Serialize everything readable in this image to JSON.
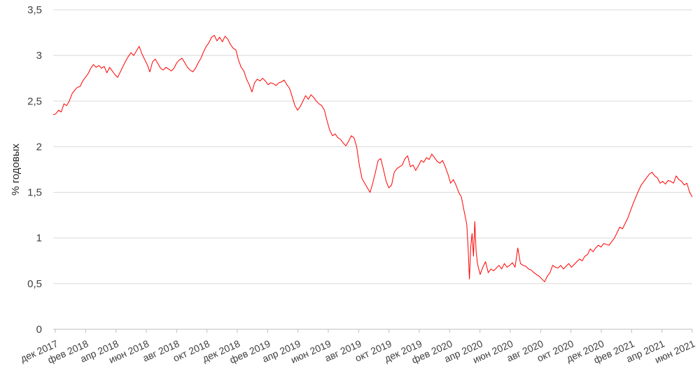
{
  "chart_data": {
    "type": "line",
    "title": "",
    "xlabel": "",
    "ylabel": "% годовых",
    "ylim": [
      0,
      3.5
    ],
    "grid": true,
    "legend": "none",
    "y_ticks": [
      "0",
      "0,5",
      "1",
      "1,5",
      "2",
      "2,5",
      "3",
      "3,5"
    ],
    "y_tick_values": [
      0,
      0.5,
      1,
      1.5,
      2,
      2.5,
      3,
      3.5
    ],
    "x_ticks": [
      "дек 2017",
      "фев 2018",
      "апр 2018",
      "июн 2018",
      "авг 2018",
      "окт 2018",
      "дек 2018",
      "фев 2019",
      "апр 2019",
      "июн 2019",
      "авг 2019",
      "окт 2019",
      "дек 2019",
      "фев 2020",
      "апр 2020",
      "июн 2020",
      "авг 2020",
      "окт 2020",
      "дек 2020",
      "фев 2021",
      "апр 2021",
      "июн 2021"
    ],
    "colors": {
      "line": "#ff0000"
    },
    "series": [
      {
        "values": [
          [
            0.0,
            2.35
          ],
          [
            0.1,
            2.36
          ],
          [
            0.2,
            2.4
          ],
          [
            0.3,
            2.38
          ],
          [
            0.4,
            2.47
          ],
          [
            0.5,
            2.45
          ],
          [
            0.6,
            2.5
          ],
          [
            0.7,
            2.58
          ],
          [
            0.8,
            2.62
          ],
          [
            0.9,
            2.65
          ],
          [
            1.0,
            2.66
          ],
          [
            1.1,
            2.72
          ],
          [
            1.2,
            2.76
          ],
          [
            1.3,
            2.8
          ],
          [
            1.4,
            2.86
          ],
          [
            1.5,
            2.9
          ],
          [
            1.6,
            2.87
          ],
          [
            1.7,
            2.89
          ],
          [
            1.8,
            2.86
          ],
          [
            1.9,
            2.88
          ],
          [
            2.0,
            2.81
          ],
          [
            2.1,
            2.87
          ],
          [
            2.2,
            2.83
          ],
          [
            2.3,
            2.79
          ],
          [
            2.4,
            2.76
          ],
          [
            2.5,
            2.82
          ],
          [
            2.6,
            2.88
          ],
          [
            2.7,
            2.94
          ],
          [
            2.8,
            2.99
          ],
          [
            2.9,
            3.03
          ],
          [
            3.0,
            3.0
          ],
          [
            3.1,
            3.05
          ],
          [
            3.2,
            3.1
          ],
          [
            3.3,
            3.02
          ],
          [
            3.4,
            2.96
          ],
          [
            3.5,
            2.9
          ],
          [
            3.6,
            2.82
          ],
          [
            3.7,
            2.93
          ],
          [
            3.8,
            2.96
          ],
          [
            3.9,
            2.91
          ],
          [
            4.0,
            2.86
          ],
          [
            4.1,
            2.84
          ],
          [
            4.2,
            2.87
          ],
          [
            4.3,
            2.85
          ],
          [
            4.4,
            2.83
          ],
          [
            4.5,
            2.86
          ],
          [
            4.6,
            2.92
          ],
          [
            4.7,
            2.95
          ],
          [
            4.8,
            2.97
          ],
          [
            4.9,
            2.92
          ],
          [
            5.0,
            2.87
          ],
          [
            5.1,
            2.84
          ],
          [
            5.2,
            2.82
          ],
          [
            5.3,
            2.86
          ],
          [
            5.4,
            2.92
          ],
          [
            5.5,
            2.97
          ],
          [
            5.6,
            3.04
          ],
          [
            5.7,
            3.1
          ],
          [
            5.8,
            3.14
          ],
          [
            5.9,
            3.2
          ],
          [
            6.0,
            3.22
          ],
          [
            6.1,
            3.16
          ],
          [
            6.2,
            3.2
          ],
          [
            6.3,
            3.15
          ],
          [
            6.4,
            3.21
          ],
          [
            6.5,
            3.18
          ],
          [
            6.6,
            3.12
          ],
          [
            6.7,
            3.08
          ],
          [
            6.8,
            3.06
          ],
          [
            6.9,
            2.95
          ],
          [
            7.0,
            2.87
          ],
          [
            7.1,
            2.83
          ],
          [
            7.2,
            2.74
          ],
          [
            7.3,
            2.68
          ],
          [
            7.4,
            2.6
          ],
          [
            7.5,
            2.7
          ],
          [
            7.6,
            2.74
          ],
          [
            7.7,
            2.72
          ],
          [
            7.8,
            2.75
          ],
          [
            7.9,
            2.72
          ],
          [
            8.0,
            2.68
          ],
          [
            8.1,
            2.7
          ],
          [
            8.2,
            2.69
          ],
          [
            8.3,
            2.67
          ],
          [
            8.4,
            2.7
          ],
          [
            8.5,
            2.71
          ],
          [
            8.6,
            2.73
          ],
          [
            8.7,
            2.68
          ],
          [
            8.8,
            2.64
          ],
          [
            8.9,
            2.55
          ],
          [
            9.0,
            2.45
          ],
          [
            9.1,
            2.4
          ],
          [
            9.2,
            2.44
          ],
          [
            9.3,
            2.5
          ],
          [
            9.4,
            2.56
          ],
          [
            9.5,
            2.52
          ],
          [
            9.6,
            2.57
          ],
          [
            9.7,
            2.54
          ],
          [
            9.8,
            2.5
          ],
          [
            9.9,
            2.47
          ],
          [
            10.0,
            2.45
          ],
          [
            10.1,
            2.4
          ],
          [
            10.2,
            2.28
          ],
          [
            10.3,
            2.18
          ],
          [
            10.4,
            2.12
          ],
          [
            10.5,
            2.14
          ],
          [
            10.6,
            2.1
          ],
          [
            10.7,
            2.08
          ],
          [
            10.8,
            2.04
          ],
          [
            10.9,
            2.01
          ],
          [
            11.0,
            2.06
          ],
          [
            11.1,
            2.12
          ],
          [
            11.2,
            2.1
          ],
          [
            11.3,
            2.0
          ],
          [
            11.4,
            1.8
          ],
          [
            11.5,
            1.65
          ],
          [
            11.6,
            1.6
          ],
          [
            11.7,
            1.55
          ],
          [
            11.8,
            1.5
          ],
          [
            11.9,
            1.6
          ],
          [
            12.0,
            1.72
          ],
          [
            12.1,
            1.85
          ],
          [
            12.2,
            1.87
          ],
          [
            12.3,
            1.75
          ],
          [
            12.4,
            1.62
          ],
          [
            12.5,
            1.55
          ],
          [
            12.6,
            1.58
          ],
          [
            12.7,
            1.72
          ],
          [
            12.8,
            1.76
          ],
          [
            12.9,
            1.78
          ],
          [
            13.0,
            1.8
          ],
          [
            13.1,
            1.87
          ],
          [
            13.2,
            1.9
          ],
          [
            13.3,
            1.78
          ],
          [
            13.4,
            1.8
          ],
          [
            13.5,
            1.74
          ],
          [
            13.6,
            1.79
          ],
          [
            13.7,
            1.85
          ],
          [
            13.8,
            1.83
          ],
          [
            13.9,
            1.88
          ],
          [
            14.0,
            1.86
          ],
          [
            14.1,
            1.92
          ],
          [
            14.2,
            1.88
          ],
          [
            14.3,
            1.84
          ],
          [
            14.4,
            1.82
          ],
          [
            14.5,
            1.85
          ],
          [
            14.6,
            1.78
          ],
          [
            14.7,
            1.7
          ],
          [
            14.8,
            1.6
          ],
          [
            14.9,
            1.64
          ],
          [
            15.0,
            1.58
          ],
          [
            15.1,
            1.5
          ],
          [
            15.2,
            1.45
          ],
          [
            15.3,
            1.3
          ],
          [
            15.4,
            1.15
          ],
          [
            15.45,
            0.9
          ],
          [
            15.5,
            0.55
          ],
          [
            15.55,
            0.9
          ],
          [
            15.6,
            1.05
          ],
          [
            15.65,
            0.8
          ],
          [
            15.7,
            1.18
          ],
          [
            15.75,
            0.85
          ],
          [
            15.8,
            0.72
          ],
          [
            15.9,
            0.6
          ],
          [
            16.0,
            0.68
          ],
          [
            16.1,
            0.74
          ],
          [
            16.2,
            0.62
          ],
          [
            16.3,
            0.66
          ],
          [
            16.4,
            0.64
          ],
          [
            16.5,
            0.67
          ],
          [
            16.6,
            0.7
          ],
          [
            16.7,
            0.66
          ],
          [
            16.8,
            0.72
          ],
          [
            16.9,
            0.68
          ],
          [
            17.0,
            0.7
          ],
          [
            17.1,
            0.73
          ],
          [
            17.2,
            0.68
          ],
          [
            17.3,
            0.89
          ],
          [
            17.4,
            0.72
          ],
          [
            17.5,
            0.7
          ],
          [
            17.6,
            0.69
          ],
          [
            17.7,
            0.66
          ],
          [
            17.8,
            0.65
          ],
          [
            17.9,
            0.62
          ],
          [
            18.0,
            0.6
          ],
          [
            18.1,
            0.58
          ],
          [
            18.2,
            0.55
          ],
          [
            18.3,
            0.52
          ],
          [
            18.4,
            0.58
          ],
          [
            18.5,
            0.62
          ],
          [
            18.6,
            0.7
          ],
          [
            18.7,
            0.68
          ],
          [
            18.8,
            0.67
          ],
          [
            18.9,
            0.7
          ],
          [
            19.0,
            0.66
          ],
          [
            19.1,
            0.69
          ],
          [
            19.2,
            0.72
          ],
          [
            19.3,
            0.68
          ],
          [
            19.4,
            0.71
          ],
          [
            19.5,
            0.74
          ],
          [
            19.6,
            0.77
          ],
          [
            19.7,
            0.75
          ],
          [
            19.8,
            0.8
          ],
          [
            19.9,
            0.82
          ],
          [
            20.0,
            0.88
          ],
          [
            20.1,
            0.85
          ],
          [
            20.2,
            0.89
          ],
          [
            20.3,
            0.92
          ],
          [
            20.4,
            0.9
          ],
          [
            20.5,
            0.94
          ],
          [
            20.6,
            0.93
          ],
          [
            20.7,
            0.92
          ],
          [
            20.8,
            0.96
          ],
          [
            20.9,
            1.0
          ],
          [
            21.0,
            1.06
          ],
          [
            21.1,
            1.12
          ],
          [
            21.2,
            1.1
          ],
          [
            21.3,
            1.16
          ],
          [
            21.4,
            1.22
          ],
          [
            21.5,
            1.3
          ],
          [
            21.6,
            1.38
          ],
          [
            21.7,
            1.45
          ],
          [
            21.8,
            1.52
          ],
          [
            21.9,
            1.58
          ],
          [
            22.0,
            1.62
          ],
          [
            22.1,
            1.66
          ],
          [
            22.2,
            1.7
          ],
          [
            22.3,
            1.72
          ],
          [
            22.4,
            1.68
          ],
          [
            22.5,
            1.66
          ],
          [
            22.6,
            1.6
          ],
          [
            22.7,
            1.62
          ],
          [
            22.8,
            1.59
          ],
          [
            22.9,
            1.63
          ],
          [
            23.0,
            1.62
          ],
          [
            23.1,
            1.6
          ],
          [
            23.2,
            1.68
          ],
          [
            23.3,
            1.64
          ],
          [
            23.4,
            1.62
          ],
          [
            23.5,
            1.58
          ],
          [
            23.6,
            1.6
          ],
          [
            23.7,
            1.5
          ],
          [
            23.8,
            1.45
          ]
        ]
      }
    ]
  }
}
